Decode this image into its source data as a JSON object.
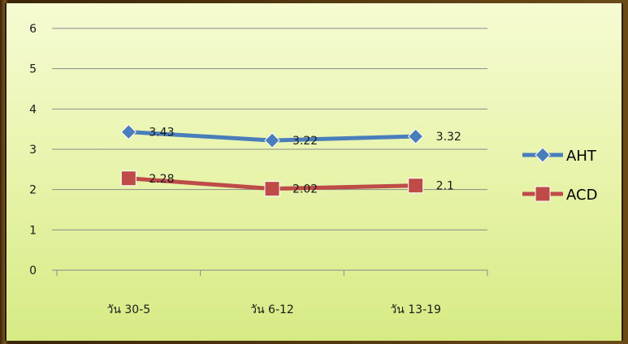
{
  "chart_data": {
    "type": "line",
    "categories": [
      "วัน 30-5",
      "วัน 6-12",
      "วัน 13-19"
    ],
    "series": [
      {
        "name": "AHT",
        "values": [
          3.43,
          3.22,
          3.32
        ],
        "labels": [
          "3.43",
          "3.22",
          "3.32"
        ],
        "color": "#4a7ebb",
        "marker": "diamond"
      },
      {
        "name": "ACD",
        "values": [
          2.28,
          2.02,
          2.1
        ],
        "labels": [
          "2.28",
          "2.02",
          "2.1"
        ],
        "color": "#be4b48",
        "marker": "square"
      }
    ],
    "ylim": [
      0,
      6
    ],
    "yticks": [
      "0",
      "1",
      "2",
      "3",
      "4",
      "5",
      "6"
    ],
    "grid": true,
    "legend": "right"
  },
  "colors": {
    "background": "#eef7b8",
    "gridline": "#8a8a8a",
    "frame": "#5a3a14"
  }
}
